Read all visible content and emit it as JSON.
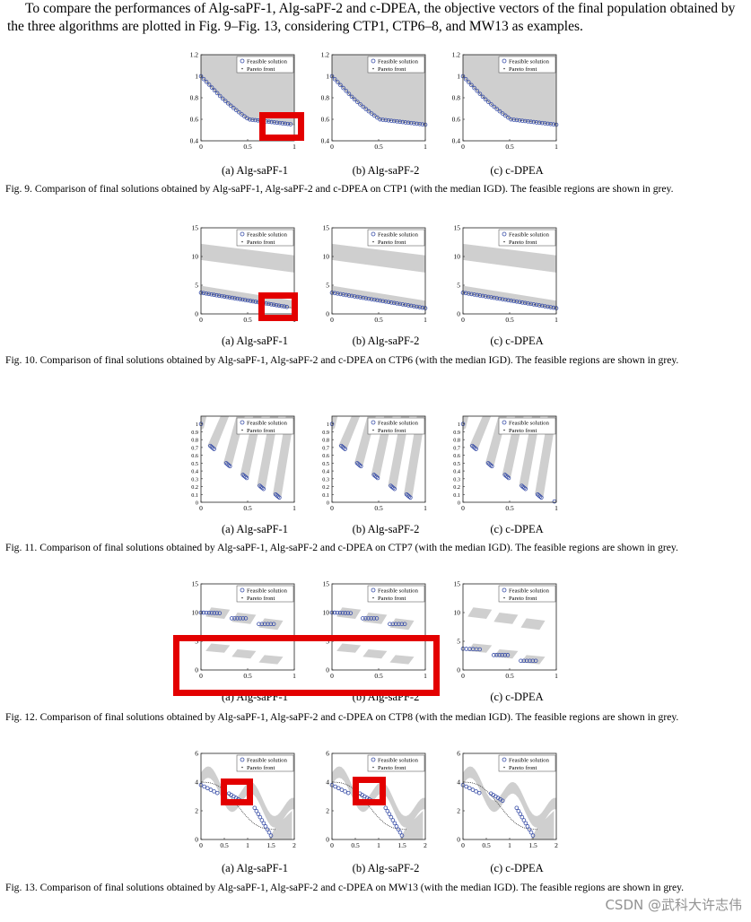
{
  "intro": "To compare the performances of Alg-saPF-1, Alg-saPF-2 and c-DPEA, the objective vectors of the final population obtained by the three algorithms are plotted in Fig. 9–Fig. 13, considering CTP1, CTP6–8, and MW13 as examples.",
  "legend": {
    "feasible": "Feasible solution",
    "pareto": "Pareto front"
  },
  "figures": [
    {
      "id": "fig9",
      "problem": "CTP1",
      "caption": "Fig. 9.  Comparison of final solutions obtained by Alg-saPF-1, Alg-saPF-2 and c-DPEA on CTP1 (with the median IGD). The feasible regions are shown in grey.",
      "subcaptions": [
        "(a) Alg-saPF-1",
        "(b) Alg-saPF-2",
        "(c) c-DPEA"
      ],
      "xticks": [
        "0",
        "0.5",
        "1"
      ],
      "yticks": [
        "0.4",
        "0.6",
        "0.8",
        "1",
        "1.2"
      ]
    },
    {
      "id": "fig10",
      "problem": "CTP6",
      "caption": "Fig. 10.  Comparison of final solutions obtained by Alg-saPF-1, Alg-saPF-2 and c-DPEA on CTP6 (with the median IGD). The feasible regions are shown in grey.",
      "subcaptions": [
        "(a) Alg-saPF-1",
        "(b) Alg-saPF-2",
        "(c) c-DPEA"
      ],
      "xticks": [
        "0",
        "0.5",
        "1"
      ],
      "yticks": [
        "0",
        "5",
        "10",
        "15"
      ]
    },
    {
      "id": "fig11",
      "problem": "CTP7",
      "caption": "Fig. 11.  Comparison of final solutions obtained by Alg-saPF-1, Alg-saPF-2 and c-DPEA on CTP7 (with the median IGD). The feasible regions are shown in grey.",
      "subcaptions": [
        "(a) Alg-saPF-1",
        "(b) Alg-saPF-2",
        "(c) c-DPEA"
      ],
      "xticks": [
        "0",
        "0.5",
        "1"
      ],
      "yticks": [
        "0",
        "0.1",
        "0.2",
        "0.3",
        "0.4",
        "0.5",
        "0.6",
        "0.7",
        "0.8",
        "0.9",
        "1"
      ]
    },
    {
      "id": "fig12",
      "problem": "CTP8",
      "caption": "Fig. 12.  Comparison of final solutions obtained by Alg-saPF-1, Alg-saPF-2 and c-DPEA on CTP8 (with the median IGD). The feasible regions are shown in grey.",
      "subcaptions": [
        "(a) Alg-saPF-1",
        "(b) Alg-saPF-2",
        "(c) c-DPEA"
      ],
      "xticks": [
        "0",
        "0.5",
        "1"
      ],
      "yticks": [
        "0",
        "5",
        "10",
        "15"
      ]
    },
    {
      "id": "fig13",
      "problem": "MW13",
      "caption": "Fig. 13.  Comparison of final solutions obtained by Alg-saPF-1, Alg-saPF-2 and c-DPEA on MW13 (with the median IGD). The feasible regions are shown in grey.",
      "subcaptions": [
        "(a) Alg-saPF-1",
        "(b) Alg-saPF-2",
        "(c) c-DPEA"
      ],
      "xticks": [
        "0",
        "0.5",
        "1",
        "1.5",
        "2"
      ],
      "yticks": [
        "0",
        "2",
        "4",
        "6"
      ]
    }
  ],
  "watermark": "CSDN @武科大许志伟"
}
